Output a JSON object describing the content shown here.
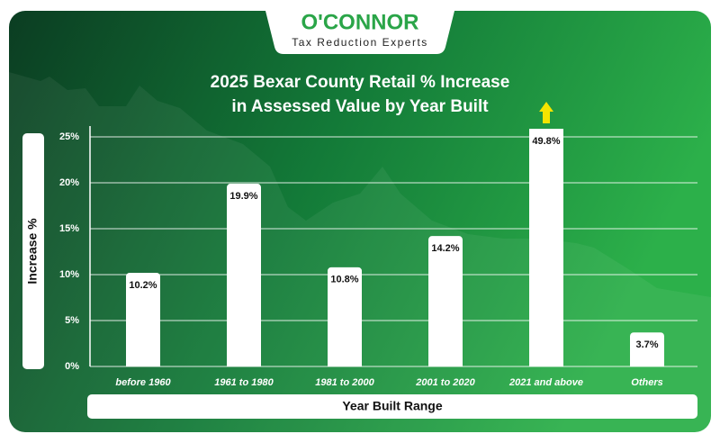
{
  "logo": {
    "name": "O'CONNOR",
    "tagline": "Tax Reduction Experts"
  },
  "chart_data": {
    "type": "bar",
    "title": "2025 Bexar County Retail % Increase\nin Assessed Value by Year Built",
    "x_label": "Year Built Range",
    "y_label": "Increase %",
    "categories": [
      "before 1960",
      "1961 to 1980",
      "1981 to 2000",
      "2001 to 2020",
      "2021 and above",
      "Others"
    ],
    "values": [
      10.2,
      19.9,
      10.8,
      14.2,
      49.8,
      3.7
    ],
    "value_labels": [
      "10.2%",
      "19.9%",
      "10.8%",
      "14.2%",
      "49.8%",
      "3.7%"
    ],
    "color": "#ffffff",
    "ylim": [
      0,
      25
    ],
    "yticks": [
      {
        "value": 0,
        "label": "0%"
      },
      {
        "value": 5,
        "label": "5%"
      },
      {
        "value": 10,
        "label": "10%"
      },
      {
        "value": 15,
        "label": "15%"
      },
      {
        "value": 20,
        "label": "20%"
      },
      {
        "value": 25,
        "label": "25%"
      }
    ],
    "grid": true
  }
}
